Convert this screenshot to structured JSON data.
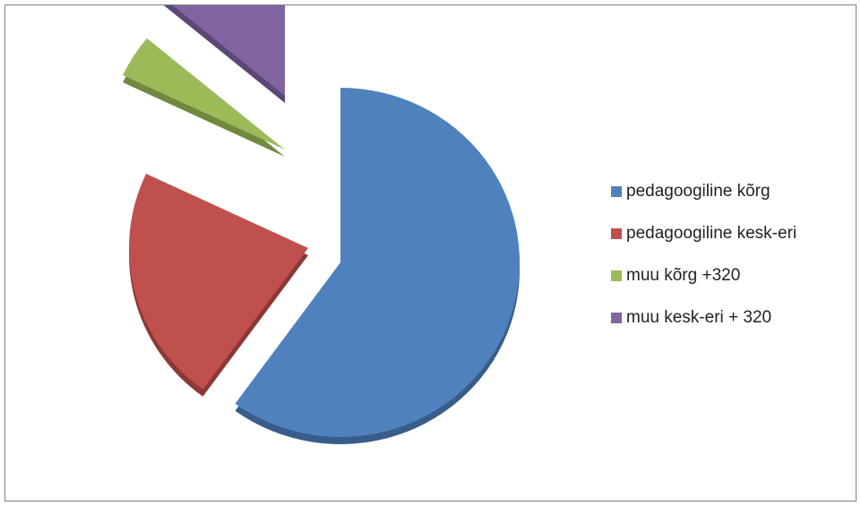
{
  "chart_data": {
    "type": "pie",
    "exploded": true,
    "three_d": true,
    "legend_position": "right",
    "series": [
      {
        "name": "pedagoogiline kõrg",
        "value": 60,
        "color": "#4F81BD",
        "side_color": "#385D8A"
      },
      {
        "name": "pedagoogiline kesk-eri",
        "value": 22,
        "color": "#C0504D",
        "side_color": "#8C3836"
      },
      {
        "name": "muu kõrg +320",
        "value": 4,
        "color": "#9BBB59",
        "side_color": "#71893F"
      },
      {
        "name": "muu kesk-eri + 320",
        "value": 14,
        "color": "#8064A2",
        "side_color": "#5C4776"
      }
    ]
  }
}
